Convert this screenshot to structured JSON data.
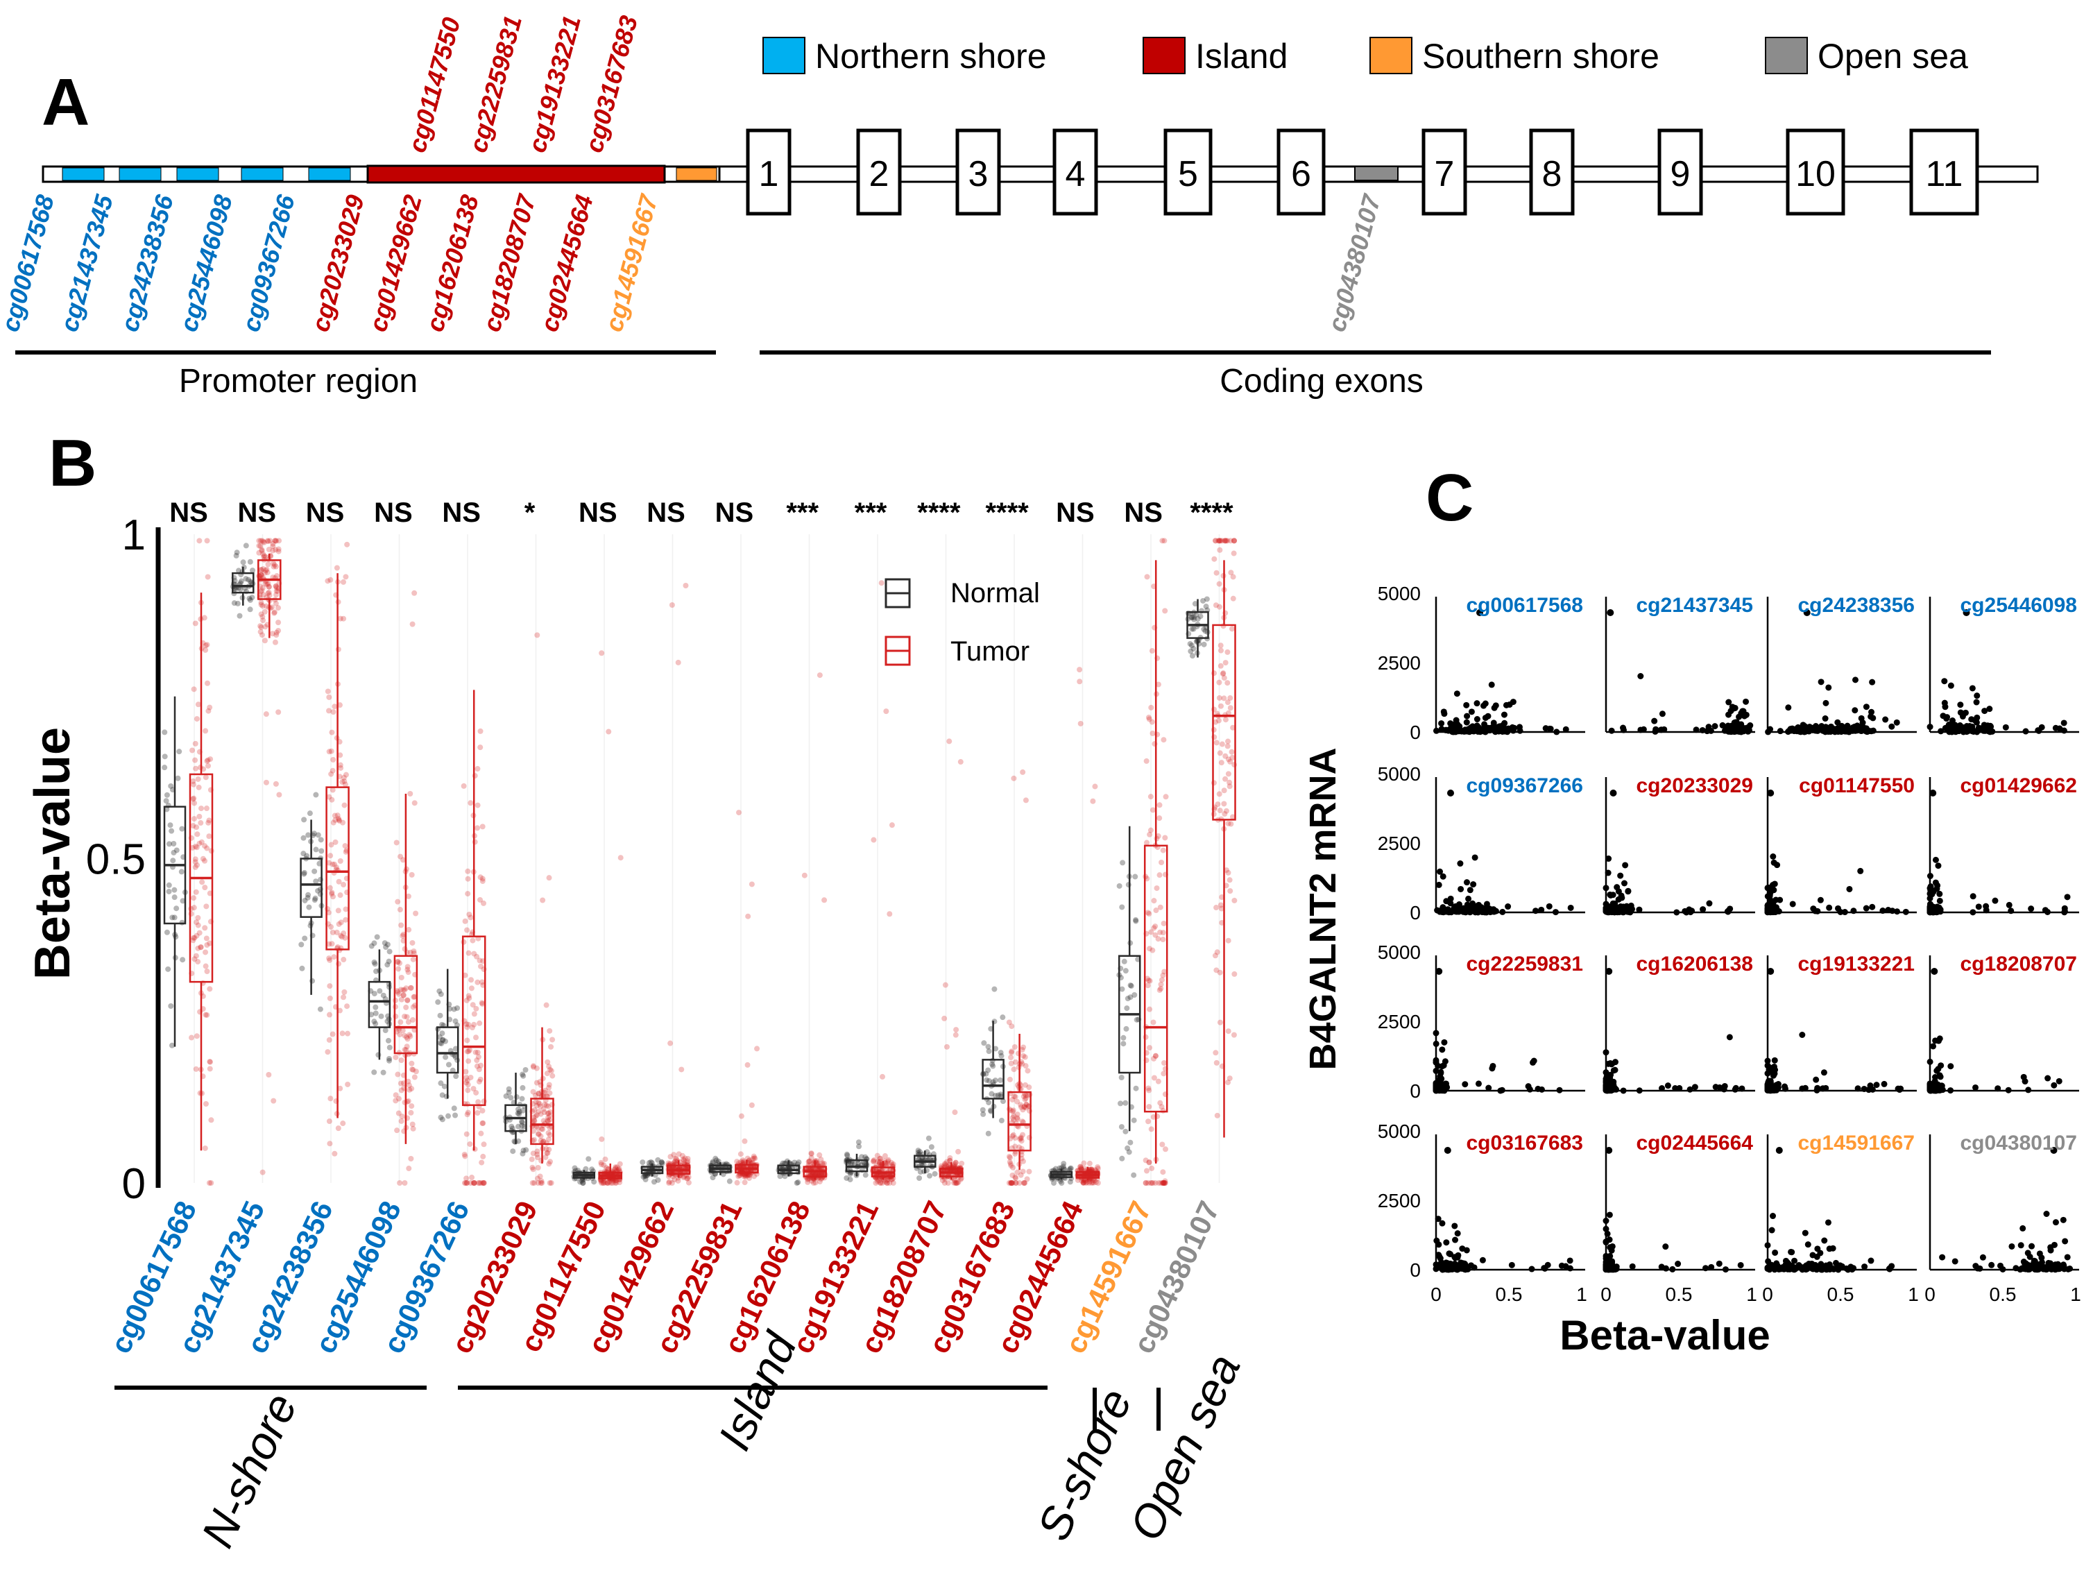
{
  "colors": {
    "n_shore": "#0070C0",
    "n_shore_box": "#00B0F0",
    "island": "#C00000",
    "s_shore": "#FF9933",
    "open_sea": "#8C8C8C",
    "normal": "#2b2b2b",
    "tumor": "#D42020"
  },
  "panel_a": {
    "label": "A",
    "legend": [
      {
        "name": "Northern shore",
        "color_key": "n_shore_box"
      },
      {
        "name": "Island",
        "color_key": "island"
      },
      {
        "name": "Southern shore",
        "color_key": "s_shore"
      },
      {
        "name": "Open sea",
        "color_key": "open_sea"
      }
    ],
    "exons": [
      "1",
      "2",
      "3",
      "4",
      "5",
      "6",
      "7",
      "8",
      "9",
      "10",
      "11"
    ],
    "probes_below": [
      {
        "id": "cg00617568",
        "region": "n_shore"
      },
      {
        "id": "cg21437345",
        "region": "n_shore"
      },
      {
        "id": "cg24238356",
        "region": "n_shore"
      },
      {
        "id": "cg25446098",
        "region": "n_shore"
      },
      {
        "id": "cg09367266",
        "region": "n_shore"
      },
      {
        "id": "cg20233029",
        "region": "island"
      },
      {
        "id": "cg01429662",
        "region": "island"
      },
      {
        "id": "cg16206138",
        "region": "island"
      },
      {
        "id": "cg18208707",
        "region": "island"
      },
      {
        "id": "cg02445664",
        "region": "island"
      },
      {
        "id": "cg14591667",
        "region": "s_shore"
      }
    ],
    "probes_above": [
      {
        "id": "cg01147550",
        "region": "island"
      },
      {
        "id": "cg22259831",
        "region": "island"
      },
      {
        "id": "cg19133221",
        "region": "island"
      },
      {
        "id": "cg03167683",
        "region": "island"
      }
    ],
    "probe_open_sea": {
      "id": "cg04380107",
      "region": "open_sea"
    },
    "brackets": [
      "Promoter region",
      "Coding exons"
    ]
  },
  "chart_data": [
    {
      "panel": "B",
      "type": "box",
      "ylabel": "Beta-value",
      "ylim": [
        0,
        1
      ],
      "yticks": [
        "0",
        "0.5",
        "1"
      ],
      "legend": [
        "Normal",
        "Tumor"
      ],
      "probes": [
        {
          "id": "cg00617568",
          "region": "n_shore",
          "sig": "NS",
          "normal": {
            "min": 0.21,
            "q1": 0.4,
            "median": 0.49,
            "q3": 0.58,
            "max": 0.75
          },
          "tumor": {
            "min": 0.05,
            "q1": 0.31,
            "median": 0.47,
            "q3": 0.63,
            "max": 0.91
          }
        },
        {
          "id": "cg21437345",
          "region": "n_shore",
          "sig": "NS",
          "normal": {
            "min": 0.89,
            "q1": 0.91,
            "median": 0.92,
            "q3": 0.94,
            "max": 0.95
          },
          "tumor": {
            "min": 0.84,
            "q1": 0.9,
            "median": 0.93,
            "q3": 0.96,
            "max": 0.97
          }
        },
        {
          "id": "cg24238356",
          "region": "n_shore",
          "sig": "NS",
          "normal": {
            "min": 0.29,
            "q1": 0.41,
            "median": 0.46,
            "q3": 0.5,
            "max": 0.56
          },
          "tumor": {
            "min": 0.1,
            "q1": 0.36,
            "median": 0.48,
            "q3": 0.61,
            "max": 0.94
          }
        },
        {
          "id": "cg25446098",
          "region": "n_shore",
          "sig": "NS",
          "normal": {
            "min": 0.19,
            "q1": 0.24,
            "median": 0.28,
            "q3": 0.31,
            "max": 0.36
          },
          "tumor": {
            "min": 0.06,
            "q1": 0.2,
            "median": 0.24,
            "q3": 0.35,
            "max": 0.6
          }
        },
        {
          "id": "cg09367266",
          "region": "n_shore",
          "sig": "NS",
          "normal": {
            "min": 0.13,
            "q1": 0.17,
            "median": 0.2,
            "q3": 0.24,
            "max": 0.33
          },
          "tumor": {
            "min": 0.05,
            "q1": 0.12,
            "median": 0.21,
            "q3": 0.38,
            "max": 0.76
          }
        },
        {
          "id": "cg20233029",
          "region": "island",
          "sig": "*",
          "normal": {
            "min": 0.06,
            "q1": 0.08,
            "median": 0.1,
            "q3": 0.12,
            "max": 0.17
          },
          "tumor": {
            "min": 0.03,
            "q1": 0.06,
            "median": 0.09,
            "q3": 0.13,
            "max": 0.24
          }
        },
        {
          "id": "cg01147550",
          "region": "island",
          "sig": "NS",
          "normal": {
            "min": 0.005,
            "q1": 0.008,
            "median": 0.012,
            "q3": 0.016,
            "max": 0.02
          },
          "tumor": {
            "min": 0.004,
            "q1": 0.007,
            "median": 0.011,
            "q3": 0.016,
            "max": 0.03
          }
        },
        {
          "id": "cg01429662",
          "region": "island",
          "sig": "NS",
          "normal": {
            "min": 0.01,
            "q1": 0.015,
            "median": 0.02,
            "q3": 0.025,
            "max": 0.03
          },
          "tumor": {
            "min": 0.008,
            "q1": 0.014,
            "median": 0.02,
            "q3": 0.027,
            "max": 0.035
          }
        },
        {
          "id": "cg22259831",
          "region": "island",
          "sig": "NS",
          "normal": {
            "min": 0.012,
            "q1": 0.017,
            "median": 0.022,
            "q3": 0.027,
            "max": 0.032
          },
          "tumor": {
            "min": 0.01,
            "q1": 0.016,
            "median": 0.022,
            "q3": 0.028,
            "max": 0.036
          }
        },
        {
          "id": "cg16206138",
          "region": "island",
          "sig": "***",
          "normal": {
            "min": 0.01,
            "q1": 0.015,
            "median": 0.02,
            "q3": 0.027,
            "max": 0.035
          },
          "tumor": {
            "min": 0.005,
            "q1": 0.01,
            "median": 0.018,
            "q3": 0.025,
            "max": 0.035
          }
        },
        {
          "id": "cg19133221",
          "region": "island",
          "sig": "***",
          "normal": {
            "min": 0.01,
            "q1": 0.018,
            "median": 0.025,
            "q3": 0.035,
            "max": 0.045
          },
          "tumor": {
            "min": 0.005,
            "q1": 0.01,
            "median": 0.016,
            "q3": 0.024,
            "max": 0.034
          }
        },
        {
          "id": "cg18208707",
          "region": "island",
          "sig": "****",
          "normal": {
            "min": 0.015,
            "q1": 0.025,
            "median": 0.033,
            "q3": 0.042,
            "max": 0.05
          },
          "tumor": {
            "min": 0.005,
            "q1": 0.01,
            "median": 0.016,
            "q3": 0.022,
            "max": 0.032
          }
        },
        {
          "id": "cg03167683",
          "region": "island",
          "sig": "****",
          "normal": {
            "min": 0.1,
            "q1": 0.13,
            "median": 0.15,
            "q3": 0.19,
            "max": 0.25
          },
          "tumor": {
            "min": 0.02,
            "q1": 0.05,
            "median": 0.09,
            "q3": 0.14,
            "max": 0.23
          }
        },
        {
          "id": "cg02445664",
          "region": "island",
          "sig": "NS",
          "normal": {
            "min": 0.005,
            "q1": 0.009,
            "median": 0.013,
            "q3": 0.017,
            "max": 0.022
          },
          "tumor": {
            "min": 0.004,
            "q1": 0.008,
            "median": 0.012,
            "q3": 0.017,
            "max": 0.025
          }
        },
        {
          "id": "cg14591667",
          "region": "s_shore",
          "sig": "NS",
          "normal": {
            "min": 0.08,
            "q1": 0.17,
            "median": 0.26,
            "q3": 0.35,
            "max": 0.55
          },
          "tumor": {
            "min": 0.03,
            "q1": 0.11,
            "median": 0.24,
            "q3": 0.52,
            "max": 0.96
          }
        },
        {
          "id": "cg04380107",
          "region": "open_sea",
          "sig": "****",
          "normal": {
            "min": 0.81,
            "q1": 0.84,
            "median": 0.86,
            "q3": 0.88,
            "max": 0.9
          },
          "tumor": {
            "min": 0.07,
            "q1": 0.56,
            "median": 0.72,
            "q3": 0.86,
            "max": 0.96
          }
        }
      ],
      "groups": [
        "N-shore",
        "Island",
        "S-shore",
        "Open sea"
      ]
    },
    {
      "panel": "C",
      "type": "scatter",
      "xlabel": "Beta-value",
      "ylabel": "B4GALNT2 mRNA",
      "xlim": [
        0,
        1
      ],
      "ylim": [
        0,
        5000
      ],
      "xticks": [
        "0",
        "0.5",
        "1"
      ],
      "yticks": [
        "0",
        "2500",
        "5000"
      ],
      "subplots": [
        {
          "id": "cg00617568",
          "region": "n_shore",
          "center": 0.3,
          "spread": 0.22,
          "outlier": [
            0.3,
            4300
          ]
        },
        {
          "id": "cg21437345",
          "region": "n_shore",
          "center": 0.9,
          "spread": 0.06,
          "outlier": [
            0.03,
            4300
          ]
        },
        {
          "id": "cg24238356",
          "region": "n_shore",
          "center": 0.45,
          "spread": 0.28,
          "outlier": [
            0.27,
            4300
          ]
        },
        {
          "id": "cg25446098",
          "region": "n_shore",
          "center": 0.25,
          "spread": 0.15,
          "outlier": [
            0.25,
            4300
          ]
        },
        {
          "id": "cg09367266",
          "region": "n_shore",
          "center": 0.2,
          "spread": 0.18,
          "outlier": [
            0.1,
            4300
          ]
        },
        {
          "id": "cg20233029",
          "region": "island",
          "center": 0.08,
          "spread": 0.08,
          "outlier": [
            0.05,
            4300
          ]
        },
        {
          "id": "cg01147550",
          "region": "island",
          "center": 0.02,
          "spread": 0.02,
          "outlier": [
            0.02,
            4300
          ]
        },
        {
          "id": "cg01429662",
          "region": "island",
          "center": 0.02,
          "spread": 0.02,
          "outlier": [
            0.02,
            4300
          ]
        },
        {
          "id": "cg22259831",
          "region": "island",
          "center": 0.02,
          "spread": 0.02,
          "outlier": [
            0.02,
            4300
          ]
        },
        {
          "id": "cg16206138",
          "region": "island",
          "center": 0.02,
          "spread": 0.02,
          "outlier": [
            0.02,
            4300
          ]
        },
        {
          "id": "cg19133221",
          "region": "island",
          "center": 0.02,
          "spread": 0.02,
          "outlier": [
            0.02,
            4300
          ]
        },
        {
          "id": "cg18208707",
          "region": "island",
          "center": 0.03,
          "spread": 0.03,
          "outlier": [
            0.03,
            4300
          ]
        },
        {
          "id": "cg03167683",
          "region": "island",
          "center": 0.1,
          "spread": 0.08,
          "outlier": [
            0.08,
            4300
          ]
        },
        {
          "id": "cg02445664",
          "region": "island",
          "center": 0.02,
          "spread": 0.02,
          "outlier": [
            0.02,
            4300
          ]
        },
        {
          "id": "cg14591667",
          "region": "s_shore",
          "center": 0.25,
          "spread": 0.25,
          "outlier": [
            0.08,
            4300
          ]
        },
        {
          "id": "cg04380107",
          "region": "open_sea",
          "center": 0.78,
          "spread": 0.15,
          "outlier": [
            0.85,
            4300
          ]
        }
      ]
    }
  ],
  "panel_b": {
    "label": "B",
    "legend_normal": "Normal",
    "legend_tumor": "Tumor"
  },
  "panel_c": {
    "label": "C"
  }
}
